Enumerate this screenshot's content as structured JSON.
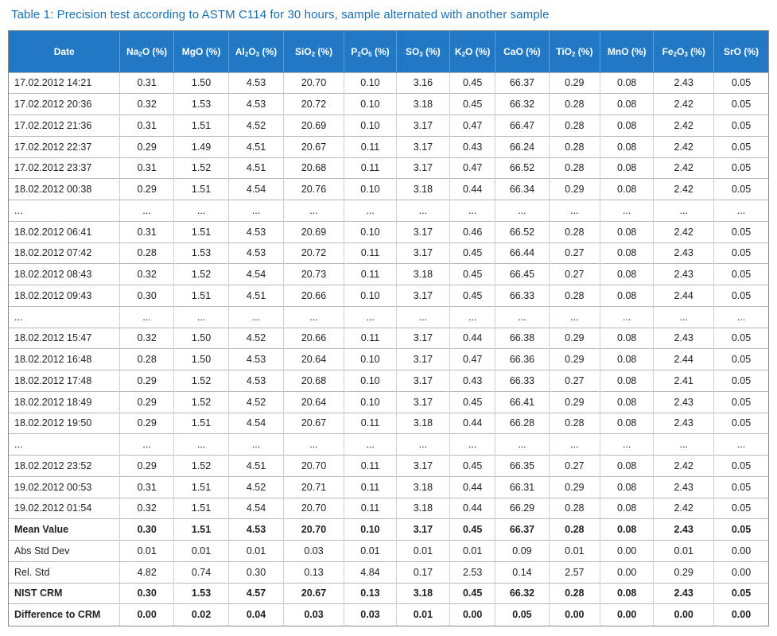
{
  "caption": "Table 1: Precision test according to ASTM C114 for 30 hours, sample alternated with another sample",
  "headers": [
    {
      "main": "Date",
      "sub": "",
      "tail": ""
    },
    {
      "main": "Na",
      "sub": "2",
      "tail": "O (%)"
    },
    {
      "main": "MgO (%)",
      "sub": "",
      "tail": ""
    },
    {
      "main": "Al",
      "sub": "2",
      "tail": "O",
      "sub2": "3",
      "tail2": " (%)"
    },
    {
      "main": "SiO",
      "sub": "2",
      "tail": " (%)"
    },
    {
      "main": "P",
      "sub": "2",
      "tail": "O",
      "sub2": "5",
      "tail2": " (%)"
    },
    {
      "main": "SO",
      "sub": "3",
      "tail": " (%)"
    },
    {
      "main": "K",
      "sub": "2",
      "tail": "O (%)"
    },
    {
      "main": "CaO (%)",
      "sub": "",
      "tail": ""
    },
    {
      "main": "TiO",
      "sub": "2",
      "tail": " (%)"
    },
    {
      "main": "MnO (%)",
      "sub": "",
      "tail": ""
    },
    {
      "main": "Fe",
      "sub": "2",
      "tail": "O",
      "sub2": "3",
      "tail2": " (%)"
    },
    {
      "main": "SrO (%)",
      "sub": "",
      "tail": ""
    }
  ],
  "rows": [
    {
      "bold": false,
      "cells": [
        "17.02.2012 14:21",
        "0.31",
        "1.50",
        "4.53",
        "20.70",
        "0.10",
        "3.16",
        "0.45",
        "66.37",
        "0.29",
        "0.08",
        "2.43",
        "0.05"
      ]
    },
    {
      "bold": false,
      "cells": [
        "17.02.2012 20:36",
        "0.32",
        "1.53",
        "4.53",
        "20.72",
        "0.10",
        "3.18",
        "0.45",
        "66.32",
        "0.28",
        "0.08",
        "2.42",
        "0.05"
      ]
    },
    {
      "bold": false,
      "cells": [
        "17.02.2012 21:36",
        "0.31",
        "1.51",
        "4.52",
        "20.69",
        "0.10",
        "3.17",
        "0.47",
        "66.47",
        "0.28",
        "0.08",
        "2.42",
        "0.05"
      ]
    },
    {
      "bold": false,
      "cells": [
        "17.02.2012 22:37",
        "0.29",
        "1.49",
        "4.51",
        "20.67",
        "0.11",
        "3.17",
        "0.43",
        "66.24",
        "0.28",
        "0.08",
        "2.42",
        "0.05"
      ]
    },
    {
      "bold": false,
      "cells": [
        "17.02.2012 23:37",
        "0.31",
        "1.52",
        "4.51",
        "20.68",
        "0.11",
        "3.17",
        "0.47",
        "66.52",
        "0.28",
        "0.08",
        "2.42",
        "0.05"
      ]
    },
    {
      "bold": false,
      "cells": [
        "18.02.2012 00:38",
        "0.29",
        "1.51",
        "4.54",
        "20.76",
        "0.10",
        "3.18",
        "0.44",
        "66.34",
        "0.29",
        "0.08",
        "2.42",
        "0.05"
      ]
    },
    {
      "bold": false,
      "cells": [
        "...",
        "...",
        "...",
        "...",
        "...",
        "...",
        "...",
        "...",
        "...",
        "...",
        "...",
        "...",
        "..."
      ]
    },
    {
      "bold": false,
      "cells": [
        "18.02.2012 06:41",
        "0.31",
        "1.51",
        "4.53",
        "20.69",
        "0.10",
        "3.17",
        "0.46",
        "66.52",
        "0.28",
        "0.08",
        "2.42",
        "0.05"
      ]
    },
    {
      "bold": false,
      "cells": [
        "18.02.2012 07:42",
        "0.28",
        "1.53",
        "4.53",
        "20.72",
        "0.11",
        "3.17",
        "0.45",
        "66.44",
        "0.27",
        "0.08",
        "2.43",
        "0.05"
      ]
    },
    {
      "bold": false,
      "cells": [
        "18.02.2012 08:43",
        "0.32",
        "1.52",
        "4.54",
        "20.73",
        "0.11",
        "3.18",
        "0.45",
        "66.45",
        "0.27",
        "0.08",
        "2.43",
        "0.05"
      ]
    },
    {
      "bold": false,
      "cells": [
        "18.02.2012 09:43",
        "0.30",
        "1.51",
        "4.51",
        "20.66",
        "0.10",
        "3.17",
        "0.45",
        "66.33",
        "0.28",
        "0.08",
        "2.44",
        "0.05"
      ]
    },
    {
      "bold": false,
      "cells": [
        "...",
        "...",
        "...",
        "...",
        "...",
        "...",
        "...",
        "...",
        "...",
        "...",
        "...",
        "...",
        "..."
      ]
    },
    {
      "bold": false,
      "cells": [
        "18.02.2012 15:47",
        "0.32",
        "1.50",
        "4.52",
        "20.66",
        "0.11",
        "3.17",
        "0.44",
        "66.38",
        "0.29",
        "0.08",
        "2.43",
        "0.05"
      ]
    },
    {
      "bold": false,
      "cells": [
        "18.02.2012 16:48",
        "0.28",
        "1.50",
        "4.53",
        "20.64",
        "0.10",
        "3.17",
        "0.47",
        "66.36",
        "0.29",
        "0.08",
        "2.44",
        "0.05"
      ]
    },
    {
      "bold": false,
      "cells": [
        "18.02.2012 17:48",
        "0.29",
        "1.52",
        "4.53",
        "20.68",
        "0.10",
        "3.17",
        "0.43",
        "66.33",
        "0.27",
        "0.08",
        "2.41",
        "0.05"
      ]
    },
    {
      "bold": false,
      "cells": [
        "18.02.2012 18:49",
        "0.29",
        "1.52",
        "4.52",
        "20.64",
        "0.10",
        "3.17",
        "0.45",
        "66.41",
        "0.29",
        "0.08",
        "2.43",
        "0.05"
      ]
    },
    {
      "bold": false,
      "cells": [
        "18.02.2012 19:50",
        "0.29",
        "1.51",
        "4.54",
        "20.67",
        "0.11",
        "3.18",
        "0.44",
        "66.28",
        "0.28",
        "0.08",
        "2.43",
        "0.05"
      ]
    },
    {
      "bold": false,
      "cells": [
        "...",
        "...",
        "...",
        "...",
        "...",
        "...",
        "...",
        "...",
        "...",
        "...",
        "...",
        "...",
        "..."
      ]
    },
    {
      "bold": false,
      "cells": [
        "18.02.2012 23:52",
        "0.29",
        "1.52",
        "4.51",
        "20.70",
        "0.11",
        "3.17",
        "0.45",
        "66.35",
        "0.27",
        "0.08",
        "2.42",
        "0.05"
      ]
    },
    {
      "bold": false,
      "cells": [
        "19.02.2012 00:53",
        "0.31",
        "1.51",
        "4.52",
        "20.71",
        "0.11",
        "3.18",
        "0.44",
        "66.31",
        "0.29",
        "0.08",
        "2.43",
        "0.05"
      ]
    },
    {
      "bold": false,
      "cells": [
        "19.02.2012 01:54",
        "0.32",
        "1.51",
        "4.54",
        "20.70",
        "0.11",
        "3.18",
        "0.44",
        "66.29",
        "0.28",
        "0.08",
        "2.42",
        "0.05"
      ]
    },
    {
      "bold": true,
      "cells": [
        "Mean Value",
        "0.30",
        "1.51",
        "4.53",
        "20.70",
        "0.10",
        "3.17",
        "0.45",
        "66.37",
        "0.28",
        "0.08",
        "2.43",
        "0.05"
      ]
    },
    {
      "bold": false,
      "cells": [
        "Abs Std Dev",
        "0.01",
        "0.01",
        "0.01",
        "0.03",
        "0.01",
        "0.01",
        "0.01",
        "0.09",
        "0.01",
        "0.00",
        "0.01",
        "0.00"
      ]
    },
    {
      "bold": false,
      "cells": [
        "Rel. Std",
        "4.82",
        "0.74",
        "0.30",
        "0.13",
        "4.84",
        "0.17",
        "2.53",
        "0.14",
        "2.57",
        "0.00",
        "0.29",
        "0.00"
      ]
    },
    {
      "bold": true,
      "cells": [
        "NIST CRM",
        "0.30",
        "1.53",
        "4.57",
        "20.67",
        "0.13",
        "3.18",
        "0.45",
        "66.32",
        "0.28",
        "0.08",
        "2.43",
        "0.05"
      ]
    },
    {
      "bold": true,
      "cells": [
        "Difference to CRM",
        "0.00",
        "0.02",
        "0.04",
        "0.03",
        "0.03",
        "0.01",
        "0.00",
        "0.05",
        "0.00",
        "0.00",
        "0.00",
        "0.00"
      ]
    }
  ]
}
